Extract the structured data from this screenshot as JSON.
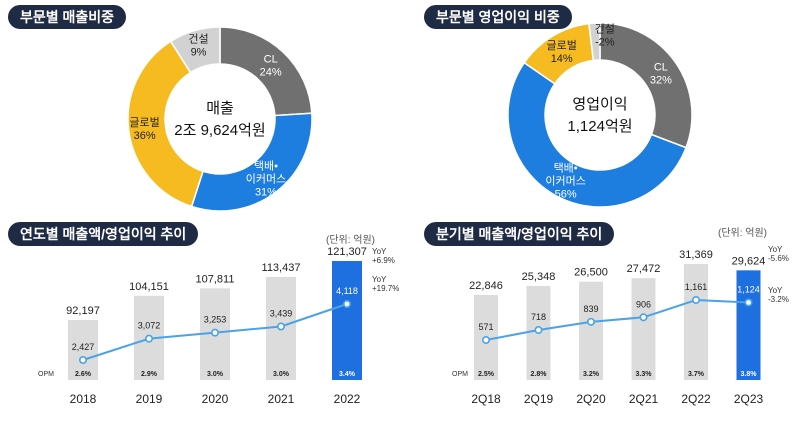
{
  "panels": {
    "sales_share_title": "부문별 매출비중",
    "profit_share_title": "부문별 영업이익 비중",
    "annual_title": "연도별 매출액/영업이익 추이",
    "quarterly_title": "분기별 매출액/영업이익 추이",
    "annual_unit": "(단위: 억원)",
    "quarterly_unit": "(단위: 억원)",
    "opm_label": "OPM"
  },
  "colors": {
    "cl": "#707070",
    "ecommerce": "#1e7ee0",
    "global": "#f7bb22",
    "construction": "#d2d2d2",
    "bar_gray": "#dcdcdc",
    "bar_blue": "#1e6fe0",
    "line": "#4aa3e6",
    "pill": "#1f2a44"
  },
  "chart_data": [
    {
      "type": "pie",
      "title": "부문별 매출비중",
      "center_label": "매출",
      "center_value": "2조 9,624억원",
      "slices": [
        {
          "name": "CL",
          "value": 24,
          "label": "24%"
        },
        {
          "name": "택배•\n이커머스",
          "value": 31,
          "label": "31%"
        },
        {
          "name": "글로벌",
          "value": 36,
          "label": "36%"
        },
        {
          "name": "건설",
          "value": 9,
          "label": "9%"
        }
      ]
    },
    {
      "type": "pie",
      "title": "부문별 영업이익 비중",
      "center_label": "영업이익",
      "center_value": "1,124억원",
      "slices": [
        {
          "name": "CL",
          "value": 32,
          "label": "32%"
        },
        {
          "name": "택배•\n이커머스",
          "value": 56,
          "label": "56%"
        },
        {
          "name": "글로벌",
          "value": 14,
          "label": "14%"
        },
        {
          "name": "건설",
          "value": -2,
          "label": "-2%"
        }
      ]
    },
    {
      "type": "bar",
      "title": "연도별 매출액/영업이익 추이",
      "categories": [
        "2018",
        "2019",
        "2020",
        "2021",
        "2022"
      ],
      "series": [
        {
          "name": "매출액",
          "values": [
            92197,
            104151,
            107811,
            113437,
            121307
          ]
        },
        {
          "name": "영업이익",
          "values": [
            2427,
            3072,
            3253,
            3439,
            4118
          ]
        }
      ],
      "opm": [
        "2.6%",
        "2.9%",
        "3.0%",
        "3.0%",
        "3.4%"
      ],
      "yoy": [
        "YoY\n+6.9%",
        "YoY\n+19.7%"
      ]
    },
    {
      "type": "bar",
      "title": "분기별 매출액/영업이익 추이",
      "categories": [
        "2Q18",
        "2Q19",
        "2Q20",
        "2Q21",
        "2Q22",
        "2Q23"
      ],
      "series": [
        {
          "name": "매출액",
          "values": [
            22846,
            25348,
            26500,
            27472,
            31369,
            29624
          ]
        },
        {
          "name": "영업이익",
          "values": [
            571,
            718,
            839,
            906,
            1161,
            1124
          ]
        }
      ],
      "opm": [
        "2.5%",
        "2.8%",
        "3.2%",
        "3.3%",
        "3.7%",
        "3.8%"
      ],
      "yoy": [
        "YoY\n-5.6%",
        "YoY\n-3.2%"
      ]
    }
  ]
}
